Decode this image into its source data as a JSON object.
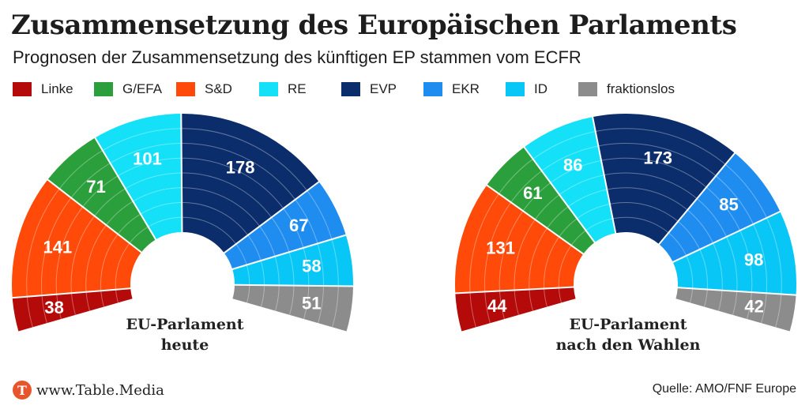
{
  "title": "Zusammensetzung des Europäischen Parlaments",
  "subtitle": "Prognosen der Zusammensetzung des künftigen EP stammen vom ECFR",
  "legend": [
    {
      "label": "Linke",
      "color": "#b40a0a"
    },
    {
      "label": "G/EFA",
      "color": "#2b9f3b"
    },
    {
      "label": "S&D",
      "color": "#ff4a0a"
    },
    {
      "label": "RE",
      "color": "#14e0f8"
    },
    {
      "label": "EVP",
      "color": "#0c2d6b"
    },
    {
      "label": "EKR",
      "color": "#1f8cf0"
    },
    {
      "label": "ID",
      "color": "#08c7f6"
    },
    {
      "label": "fraktionslos",
      "color": "#8c8c8c"
    }
  ],
  "chart_data": [
    {
      "type": "pie",
      "caption": [
        "EU-Parlament",
        "heute"
      ],
      "categories": [
        "Linke",
        "S&D",
        "G/EFA",
        "RE",
        "EVP",
        "EKR",
        "ID",
        "fraktionslos"
      ],
      "values": [
        38,
        141,
        71,
        101,
        178,
        67,
        58,
        51
      ],
      "colors": [
        "#b40a0a",
        "#ff4a0a",
        "#2b9f3b",
        "#14e0f8",
        "#0c2d6b",
        "#1f8cf0",
        "#08c7f6",
        "#8c8c8c"
      ]
    },
    {
      "type": "pie",
      "caption": [
        "EU-Parlament",
        "nach den Wahlen"
      ],
      "categories": [
        "Linke",
        "S&D",
        "G/EFA",
        "RE",
        "EVP",
        "EKR",
        "ID",
        "fraktionslos"
      ],
      "values": [
        44,
        131,
        61,
        86,
        173,
        85,
        98,
        42
      ],
      "colors": [
        "#b40a0a",
        "#ff4a0a",
        "#2b9f3b",
        "#14e0f8",
        "#0c2d6b",
        "#1f8cf0",
        "#08c7f6",
        "#8c8c8c"
      ]
    }
  ],
  "footer": {
    "logo_letter": "T",
    "logo_text": "www.Table.Media",
    "source": "Quelle: AMO/FNF Europe"
  }
}
